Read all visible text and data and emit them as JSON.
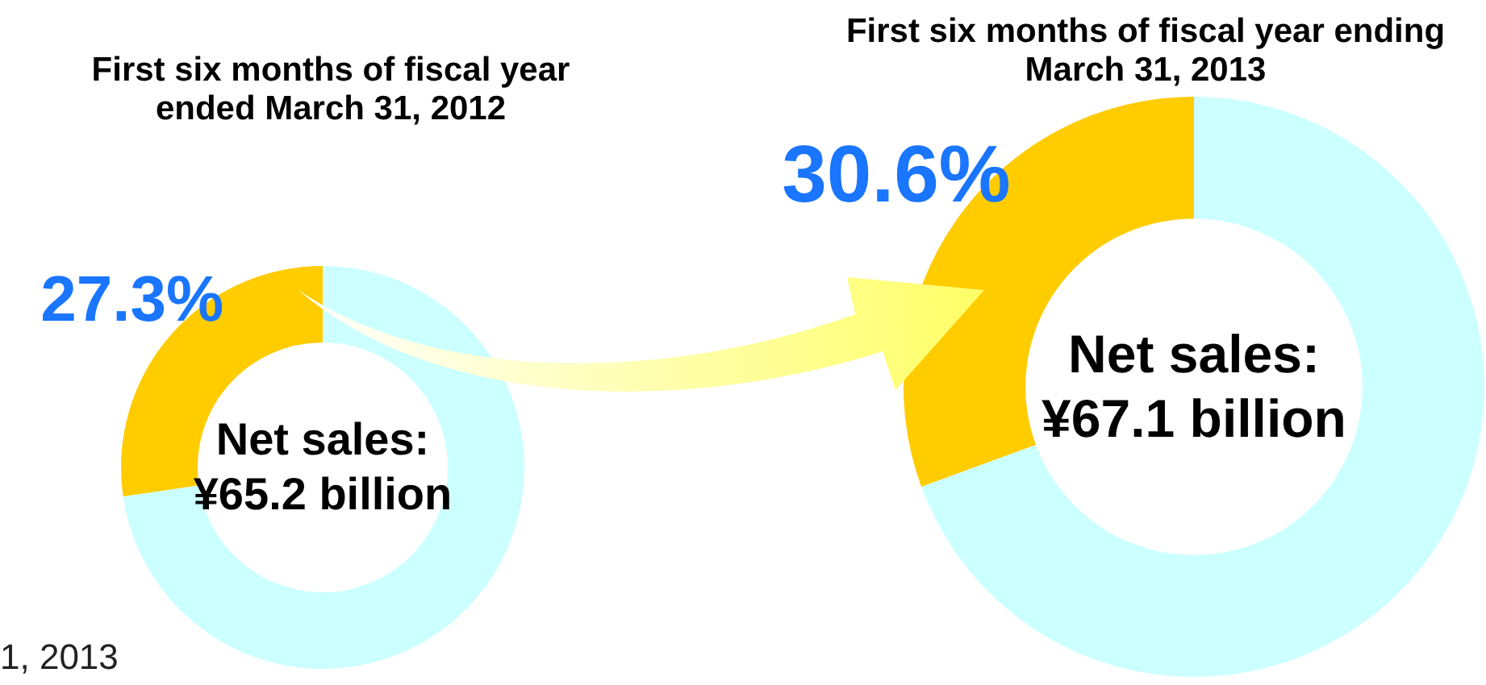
{
  "chart_data": [
    {
      "type": "donut",
      "title": "First six months of fiscal year ended March 31, 2012",
      "categories": [
        null,
        null
      ],
      "values": [
        72.7,
        27.3
      ],
      "colors": [
        "#ccffff",
        "#ffcc00"
      ],
      "value_labels": [
        null,
        "27.3%"
      ],
      "annotations": [
        "Net sales: ¥65.2 billion",
        "1, 2013"
      ],
      "legend": false
    },
    {
      "type": "donut",
      "title": "First six months of fiscal year ending March 31, 2013",
      "categories": [
        null,
        null
      ],
      "values": [
        69.4,
        30.6
      ],
      "colors": [
        "#ccffff",
        "#ffcc00"
      ],
      "value_labels": [
        null,
        "30.6%"
      ],
      "annotations": [
        "Net sales: ¥67.1 billion"
      ],
      "legend": false
    }
  ]
}
